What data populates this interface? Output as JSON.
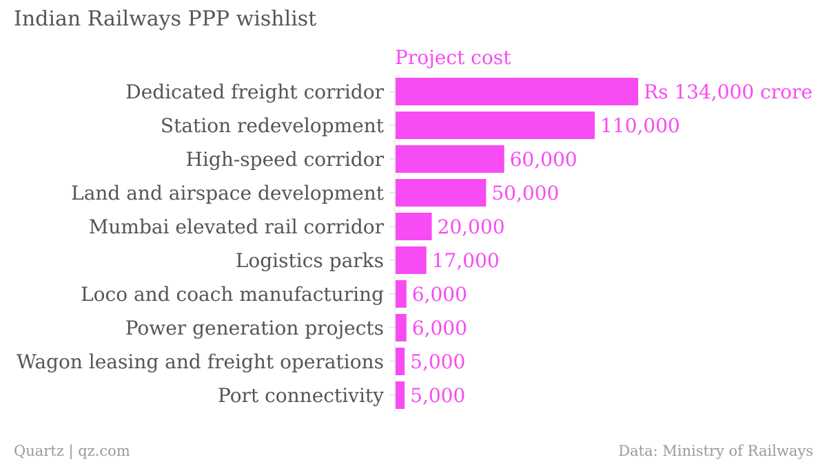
{
  "chart_data": {
    "type": "bar",
    "orientation": "horizontal",
    "title": "Indian Railways PPP wishlist",
    "series": [
      {
        "name": "Project cost",
        "values": [
          134000,
          110000,
          60000,
          50000,
          20000,
          17000,
          6000,
          6000,
          5000,
          5000
        ]
      }
    ],
    "categories": [
      "Dedicated freight corridor",
      "Station redevelopment",
      "High-speed corridor",
      "Land and airspace development",
      "Mumbai elevated rail corridor",
      "Logistics parks",
      "Loco and coach manufacturing",
      "Power generation projects",
      "Wagon leasing and freight operations",
      "Port connectivity"
    ],
    "data_labels": [
      "Rs 134,000 crore",
      "110,000",
      "60,000",
      "50,000",
      "20,000",
      "17,000",
      "6,000",
      "6,000",
      "5,000",
      "5,000"
    ],
    "xlim": [
      0,
      134000
    ],
    "grid": false,
    "legend": "top",
    "bar_color": "#f74bf3",
    "label_color": "#555555"
  },
  "footer": {
    "source": "Quartz | qz.com",
    "credit": "Data: Ministry of Railways"
  }
}
